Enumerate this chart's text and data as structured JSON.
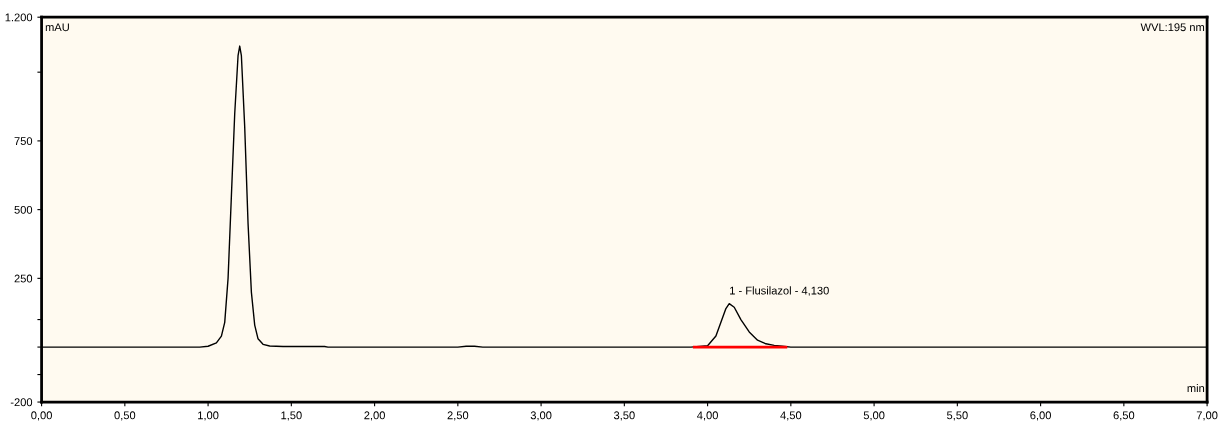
{
  "chart_data": {
    "type": "line",
    "xlabel": "min",
    "ylabel": "mAU",
    "series": [
      {
        "color": "#000000",
        "x": [
          0,
          0.95,
          1.0,
          1.05,
          1.08,
          1.1,
          1.12,
          1.14,
          1.16,
          1.18,
          1.19,
          1.2,
          1.22,
          1.24,
          1.26,
          1.28,
          1.3,
          1.33,
          1.37,
          1.45,
          1.7,
          1.72,
          2.5,
          2.55,
          2.6,
          2.65,
          3.9,
          4.0,
          4.05,
          4.08,
          4.11,
          4.13,
          4.16,
          4.2,
          4.25,
          4.3,
          4.35,
          4.4,
          4.45,
          4.5,
          7.0
        ],
        "values": [
          0,
          0,
          3,
          15,
          40,
          90,
          250,
          550,
          850,
          1060,
          1095,
          1060,
          800,
          450,
          200,
          80,
          30,
          10,
          4,
          2,
          2,
          0,
          0,
          3,
          3,
          0,
          0,
          5,
          40,
          90,
          140,
          158,
          145,
          100,
          55,
          25,
          12,
          6,
          3,
          0,
          0
        ]
      },
      {
        "color": "#ff0000",
        "x": [
          3.92,
          4.47
        ],
        "values": [
          0,
          0
        ]
      }
    ],
    "xlim": [
      0,
      7
    ],
    "ylim": [
      -200,
      1200
    ],
    "xticks": [
      {
        "value": 0,
        "label": "0,00"
      },
      {
        "value": 0.5,
        "label": "0,50"
      },
      {
        "value": 1,
        "label": "1,00"
      },
      {
        "value": 1.5,
        "label": "1,50"
      },
      {
        "value": 2,
        "label": "2,00"
      },
      {
        "value": 2.5,
        "label": "2,50"
      },
      {
        "value": 3,
        "label": "3,00"
      },
      {
        "value": 3.5,
        "label": "3,50"
      },
      {
        "value": 4,
        "label": "4,00"
      },
      {
        "value": 4.5,
        "label": "4,50"
      },
      {
        "value": 5,
        "label": "5,00"
      },
      {
        "value": 5.5,
        "label": "5,50"
      },
      {
        "value": 6,
        "label": "6,00"
      },
      {
        "value": 6.5,
        "label": "6,50"
      },
      {
        "value": 7,
        "label": "7,00"
      }
    ],
    "yticks": [
      -200,
      {
        "value": -100,
        "label": null
      },
      {
        "value": 0,
        "label": null
      },
      {
        "value": 100,
        "label": null
      },
      250,
      500,
      750,
      {
        "value": 1000,
        "label": null
      },
      {
        "value": 1200,
        "label": "1.200"
      }
    ],
    "annotations": [
      {
        "text": "1 - Flusilazol - 4,130",
        "x": 4.13,
        "y": 158
      },
      "WVL:195 nm"
    ],
    "grid": false,
    "legend": false,
    "marker": "none",
    "line_style": "solid"
  }
}
